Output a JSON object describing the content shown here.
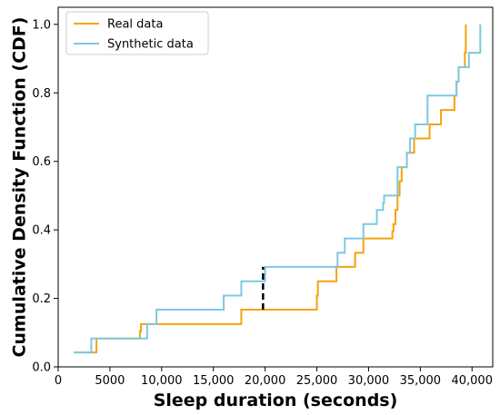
{
  "chart_data": {
    "type": "line",
    "step": true,
    "xlabel": "Sleep duration (seconds)",
    "ylabel": "Cumulative Density Function (CDF)",
    "xlim": [
      0,
      42000
    ],
    "ylim": [
      0,
      1.05
    ],
    "xticks": [
      0,
      5000,
      10000,
      15000,
      20000,
      25000,
      30000,
      35000,
      40000
    ],
    "xtick_labels": [
      "0",
      "5000",
      "10,000",
      "15,000",
      "20,000",
      "25,000",
      "30,000",
      "35,000",
      "40,000"
    ],
    "yticks": [
      0.0,
      0.2,
      0.4,
      0.6,
      0.8,
      1.0
    ],
    "ytick_labels": [
      "0.0",
      "0.2",
      "0.4",
      "0.6",
      "0.8",
      "1.0"
    ],
    "grid": false,
    "legend_position": "top-left",
    "series": [
      {
        "name": "Real data",
        "color": "#f5a30b",
        "x": [
          1500,
          3700,
          7900,
          8000,
          17700,
          25000,
          25100,
          26900,
          28700,
          29500,
          32300,
          32400,
          32600,
          32800,
          33000,
          33200,
          33700,
          34400,
          35900,
          37000,
          38300,
          38500,
          38700,
          39300,
          39400
        ],
        "y": [
          0.042,
          0.083,
          0.104,
          0.125,
          0.167,
          0.208,
          0.25,
          0.292,
          0.333,
          0.375,
          0.396,
          0.417,
          0.458,
          0.5,
          0.542,
          0.583,
          0.625,
          0.667,
          0.708,
          0.75,
          0.792,
          0.833,
          0.875,
          0.917,
          1.0
        ]
      },
      {
        "name": "Synthetic data",
        "color": "#7ec8e3",
        "x": [
          1500,
          3200,
          8600,
          9500,
          16000,
          17700,
          20000,
          27000,
          27700,
          29500,
          30800,
          31400,
          31500,
          32800,
          33700,
          34000,
          34500,
          35700,
          38500,
          38700,
          39700,
          40800
        ],
        "y": [
          0.042,
          0.083,
          0.125,
          0.167,
          0.208,
          0.25,
          0.292,
          0.333,
          0.375,
          0.417,
          0.458,
          0.479,
          0.5,
          0.583,
          0.625,
          0.667,
          0.708,
          0.792,
          0.833,
          0.875,
          0.917,
          1.0
        ]
      }
    ],
    "annotation": {
      "type": "ks-distance",
      "style": "black dashed vertical",
      "x": 19800,
      "y_from": 0.167,
      "y_to": 0.292
    }
  }
}
